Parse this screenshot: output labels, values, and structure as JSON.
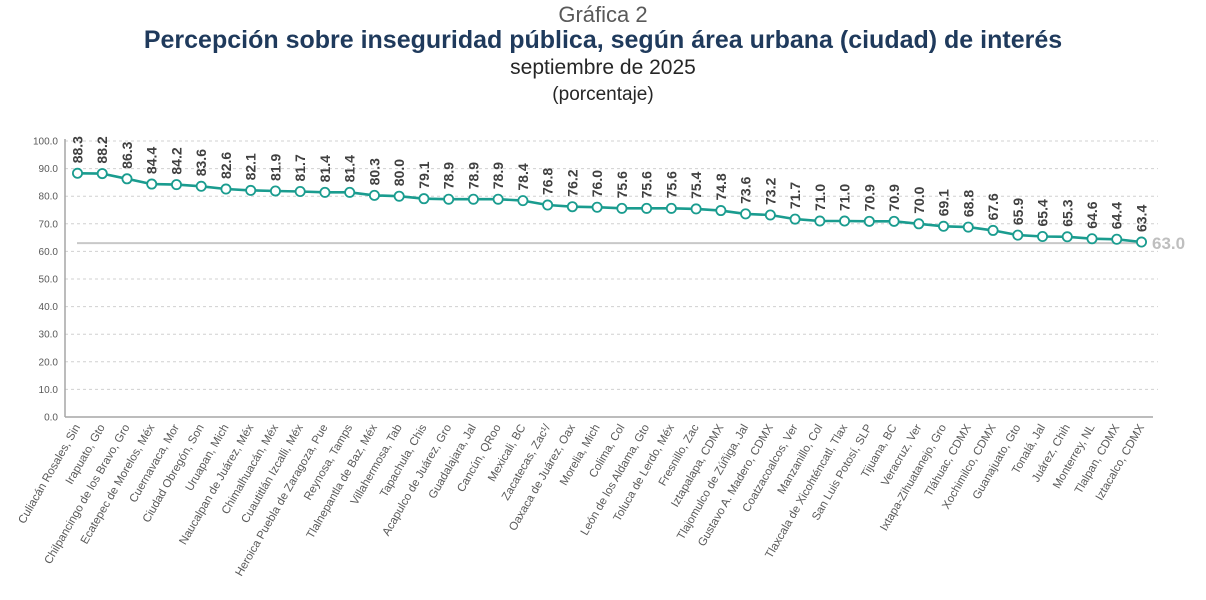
{
  "header": {
    "kicker": "Gráfica 2",
    "title": "Percepción sobre inseguridad pública, según área urbana (ciudad) de interés",
    "subtitle": "septiembre de 2025",
    "unit": "(porcentaje)"
  },
  "chart_data": {
    "type": "line",
    "title": "Percepción sobre inseguridad pública, según área urbana (ciudad) de interés",
    "subtitle": "septiembre de 2025 (porcentaje)",
    "xlabel": "",
    "ylabel": "",
    "ylim": [
      0,
      100
    ],
    "yticks": [
      "0.0",
      "10.0",
      "20.0",
      "30.0",
      "40.0",
      "50.0",
      "60.0",
      "70.0",
      "80.0",
      "90.0",
      "100.0"
    ],
    "grid": true,
    "legend": "none",
    "line_color": "#1a9c8f",
    "reference_line": {
      "value": 63.0,
      "label": "63.0",
      "color": "#c8c8c8"
    },
    "categories": [
      "Culiacán Rosales, Sin",
      "Irapuato, Gto",
      "Chilpancingo de los Bravo, Gro",
      "Ecatepec de Morelos, Méx",
      "Cuernavaca, Mor",
      "Ciudad Obregón, Son",
      "Uruapan, Mich",
      "Naucalpan de Juárez, Méx",
      "Chimalhuacán, Méx",
      "Cuautitlán Izcalli, Méx",
      "Heroica Puebla de Zaragoza, Pue",
      "Reynosa, Tamps",
      "Tlalnepantla de Baz, Méx",
      "Villahermosa, Tab",
      "Tapachula, Chis",
      "Acapulco de Juárez, Gro",
      "Guadalajara, Jal",
      "Cancún, QRoo",
      "Mexicali, BC",
      "Zacatecas, Zac¹/",
      "Oaxaca de Juárez, Oax",
      "Morelia, Mich",
      "Colima, Col",
      "León de los Aldama, Gto",
      "Toluca de Lerdo, Méx",
      "Fresnillo, Zac",
      "Iztapalapa, CDMX",
      "Tlajomulco de Zúñiga, Jal",
      "Gustavo A. Madero, CDMX",
      "Coatzacoalcos, Ver",
      "Manzanillo, Col",
      "Tlaxcala de Xicohténcatl, Tlax",
      "San Luis Potosí, SLP",
      "Tijuana, BC",
      "Veracruz, Ver",
      "Ixtapa-Zihuatanejo, Gro",
      "Tláhuac, CDMX",
      "Xochimilco, CDMX",
      "Guanajuato, Gto",
      "Tonalá, Jal",
      "Juárez, Chih",
      "Monterrey, NL",
      "Tlalpan, CDMX",
      "Iztacalco, CDMX"
    ],
    "values": [
      88.3,
      88.2,
      86.3,
      84.4,
      84.2,
      83.6,
      82.6,
      82.1,
      81.9,
      81.7,
      81.4,
      81.4,
      80.3,
      80.0,
      79.1,
      78.9,
      78.9,
      78.9,
      78.4,
      76.8,
      76.2,
      76.0,
      75.6,
      75.6,
      75.6,
      75.4,
      74.8,
      73.6,
      73.2,
      71.7,
      71.0,
      71.0,
      70.9,
      70.9,
      70.0,
      69.1,
      68.8,
      67.6,
      65.9,
      65.4,
      65.3,
      64.6,
      64.4,
      63.4
    ],
    "data_labels": [
      "88.3",
      "88.2",
      "86.3",
      "84.4",
      "84.2",
      "83.6",
      "82.6",
      "82.1",
      "81.9",
      "81.7",
      "81.4",
      "81.4",
      "80.3",
      "80.0",
      "79.1",
      "78.9",
      "78.9",
      "78.9",
      "78.4",
      "76.8",
      "76.2",
      "76.0",
      "75.6",
      "75.6",
      "75.6",
      "75.4",
      "74.8",
      "73.6",
      "73.2",
      "71.7",
      "71.0",
      "71.0",
      "70.9",
      "70.9",
      "70.0",
      "69.1",
      "68.8",
      "67.6",
      "65.9",
      "65.4",
      "65.3",
      "64.6",
      "64.4",
      "63.4"
    ]
  }
}
